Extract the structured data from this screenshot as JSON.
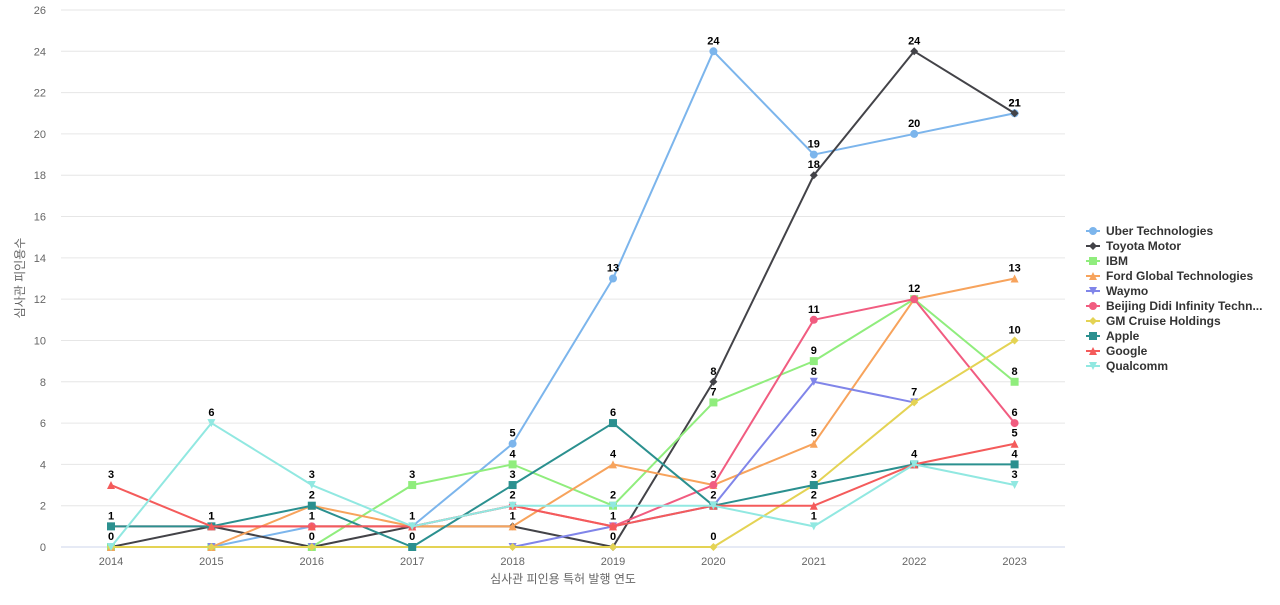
{
  "chart_data": {
    "type": "line",
    "title": "",
    "xlabel": "심사관 피인용 특허 발행 연도",
    "ylabel": "심사관 피인용수",
    "x": [
      "2014",
      "2015",
      "2016",
      "2017",
      "2018",
      "2019",
      "2020",
      "2021",
      "2022",
      "2023"
    ],
    "ylim": [
      0,
      26
    ],
    "yticks": [
      0,
      2,
      4,
      6,
      8,
      10,
      12,
      14,
      16,
      18,
      20,
      22,
      24,
      26
    ],
    "grid": true,
    "legend_position": "right",
    "series": [
      {
        "name": "Uber Technologies",
        "color": "#7cb5ec",
        "marker": "circle",
        "values": [
          0,
          0,
          1,
          1,
          5,
          13,
          24,
          19,
          20,
          21
        ],
        "labels": [
          null,
          null,
          null,
          null,
          5,
          13,
          24,
          19,
          20,
          21
        ]
      },
      {
        "name": "Toyota Motor",
        "color": "#434348",
        "marker": "diamond",
        "values": [
          0,
          1,
          0,
          1,
          1,
          0,
          8,
          18,
          24,
          21
        ],
        "labels": [
          0,
          1,
          0,
          null,
          1,
          0,
          8,
          18,
          24,
          21
        ]
      },
      {
        "name": "IBM",
        "color": "#90ed7d",
        "marker": "square",
        "values": [
          0,
          0,
          0,
          3,
          4,
          2,
          7,
          9,
          12,
          8
        ],
        "labels": [
          null,
          null,
          null,
          3,
          4,
          null,
          7,
          9,
          null,
          8
        ]
      },
      {
        "name": "Ford Global Technologies",
        "color": "#f7a35c",
        "marker": "triangle",
        "values": [
          0,
          0,
          2,
          1,
          1,
          4,
          3,
          5,
          12,
          13
        ],
        "labels": [
          null,
          null,
          null,
          null,
          null,
          4,
          null,
          5,
          null,
          13
        ]
      },
      {
        "name": "Waymo",
        "color": "#8085e9",
        "marker": "triangle-down",
        "values": [
          0,
          0,
          0,
          0,
          0,
          1,
          2,
          8,
          7,
          null
        ],
        "labels": [
          null,
          null,
          null,
          null,
          null,
          1,
          null,
          8,
          null,
          null
        ]
      },
      {
        "name": "Beijing Didi Infinity Techn...",
        "color": "#f15c80",
        "marker": "circle",
        "values": [
          1,
          1,
          1,
          1,
          2,
          1,
          3,
          11,
          12,
          6
        ],
        "labels": [
          null,
          null,
          1,
          null,
          null,
          null,
          3,
          11,
          12,
          6
        ]
      },
      {
        "name": "GM Cruise Holdings",
        "color": "#e4d354",
        "marker": "diamond",
        "values": [
          0,
          0,
          0,
          0,
          0,
          0,
          0,
          3,
          7,
          10
        ],
        "labels": [
          null,
          null,
          null,
          null,
          null,
          null,
          0,
          3,
          7,
          10
        ]
      },
      {
        "name": "Apple",
        "color": "#2b908f",
        "marker": "square",
        "values": [
          1,
          1,
          2,
          0,
          3,
          6,
          2,
          3,
          4,
          4
        ],
        "labels": [
          1,
          null,
          2,
          0,
          3,
          6,
          2,
          null,
          4,
          4
        ]
      },
      {
        "name": "Google",
        "color": "#f45b5b",
        "marker": "triangle",
        "values": [
          3,
          1,
          1,
          1,
          2,
          1,
          2,
          2,
          4,
          5
        ],
        "labels": [
          3,
          1,
          null,
          1,
          2,
          null,
          null,
          2,
          null,
          5
        ]
      },
      {
        "name": "Qualcomm",
        "color": "#91e8e1",
        "marker": "triangle-down",
        "values": [
          0,
          6,
          3,
          1,
          2,
          2,
          2,
          1,
          4,
          3
        ],
        "labels": [
          null,
          6,
          3,
          null,
          null,
          2,
          null,
          1,
          null,
          3
        ]
      }
    ]
  }
}
